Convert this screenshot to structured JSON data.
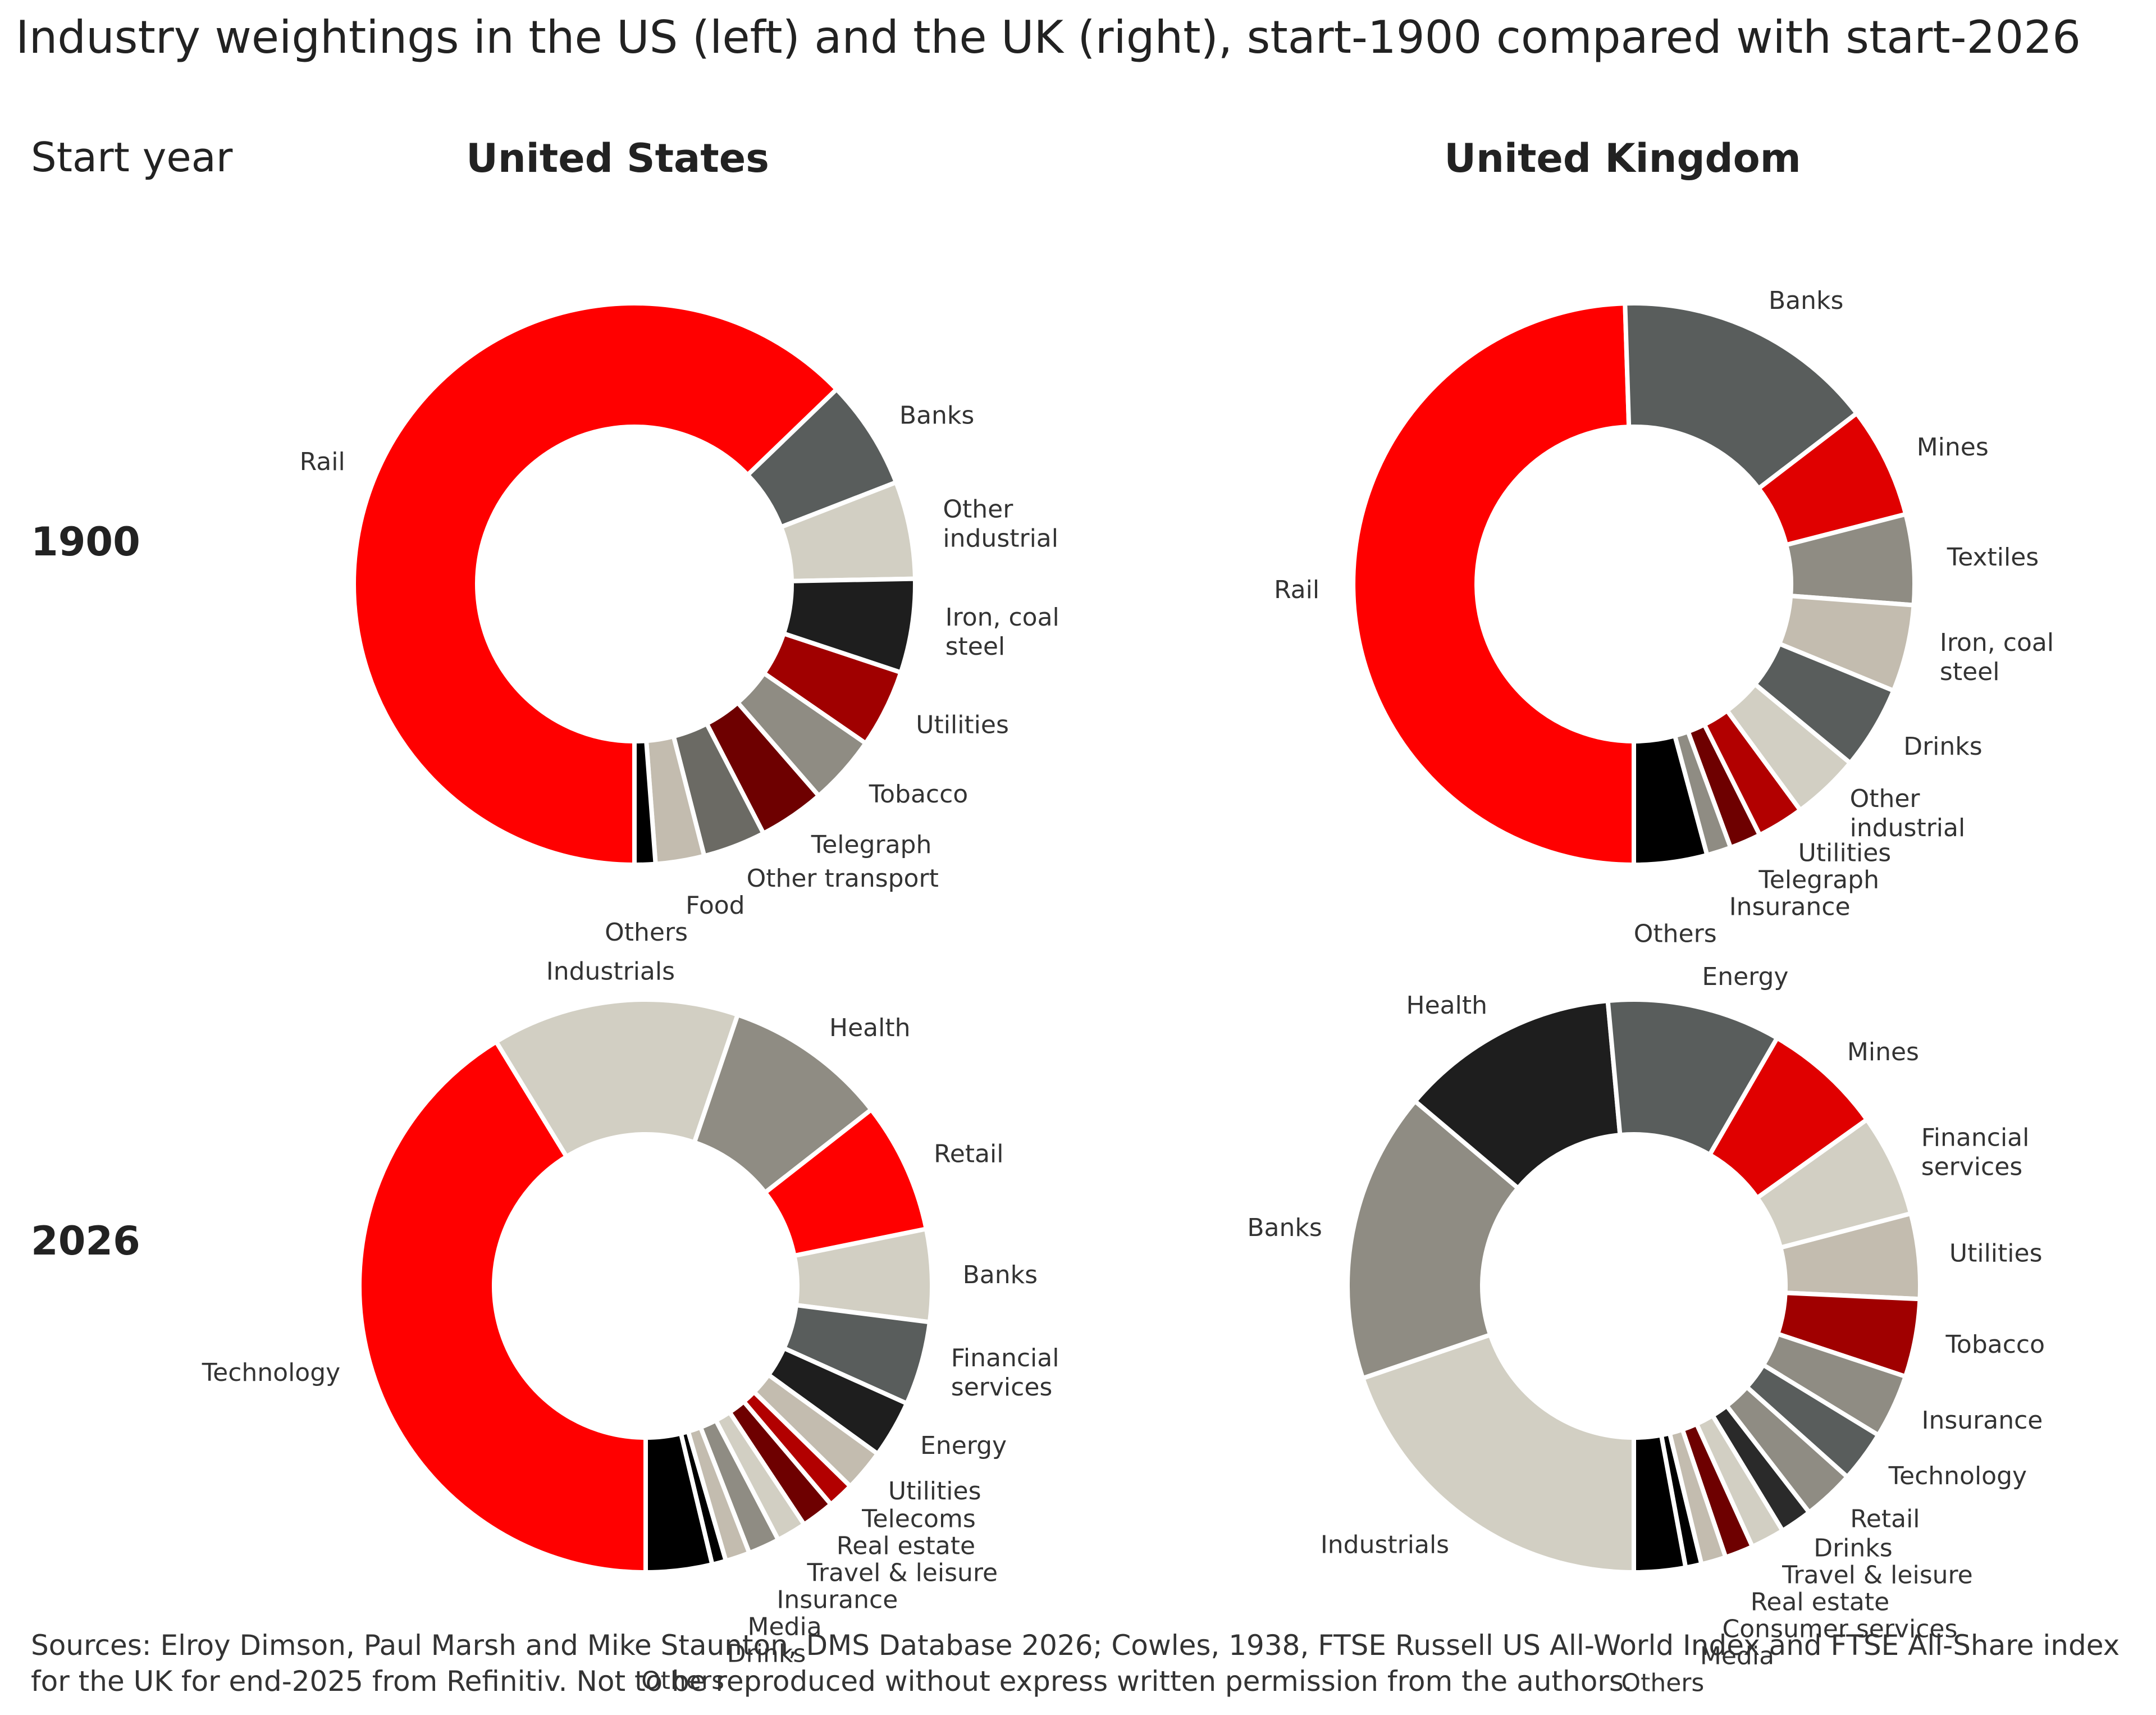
{
  "title": "Industry weightings in the US (left) and the UK (right), start-1900 compared with start-2026",
  "row_header": "Start year",
  "columns": [
    "United States",
    "United Kingdom"
  ],
  "rows": [
    "1900",
    "2026"
  ],
  "sources": "Sources: Elroy Dimson, Paul Marsh and Mike Staunton, DMS Database 2026; Cowles, 1938, FTSE Russell US All-World Index and FTSE All-Share index for the UK for end-2025 from Refinitiv. Not to be reproduced without express written permission from the authors.",
  "colors": {
    "red": "#ff0000",
    "darkgrey": "#595d5c",
    "lightbeige": "#d2cfc3",
    "black": "#1e1e1e",
    "darkred": "#b20000",
    "midgrey": "#8f8c83",
    "maroon": "#6e0000",
    "greybrown": "#6b6a64",
    "beige": "#c3bcaf",
    "pureblack": "#000000",
    "brightred": "#e00000",
    "tan": "#bdb6a6"
  },
  "chart_data": [
    {
      "type": "pie",
      "subtype": "donut",
      "country": "United States",
      "year": "1900",
      "unit": "%",
      "start": "bottom",
      "direction": "clockwise",
      "slices": [
        {
          "label": "Rail",
          "value": 62.8,
          "color": "#ff0000"
        },
        {
          "label": "Banks",
          "value": 6.3,
          "color": "#595d5c"
        },
        {
          "label": "Other industrial",
          "value": 5.6,
          "color": "#d2cfc3"
        },
        {
          "label": "Iron, coal steel",
          "value": 5.4,
          "color": "#1e1e1e"
        },
        {
          "label": "Utilities",
          "value": 4.5,
          "color": "#a00000"
        },
        {
          "label": "Tobacco",
          "value": 4.0,
          "color": "#8f8c83"
        },
        {
          "label": "Telegraph",
          "value": 3.8,
          "color": "#6e0000"
        },
        {
          "label": "Other transport",
          "value": 3.6,
          "color": "#6b6a64"
        },
        {
          "label": "Food",
          "value": 2.8,
          "color": "#c3bcaf"
        },
        {
          "label": "Others",
          "value": 1.2,
          "color": "#000000"
        }
      ]
    },
    {
      "type": "pie",
      "subtype": "donut",
      "country": "United Kingdom",
      "year": "1900",
      "unit": "%",
      "start": "bottom",
      "direction": "clockwise",
      "slices": [
        {
          "label": "Rail",
          "value": 49.5,
          "color": "#ff0000"
        },
        {
          "label": "Banks",
          "value": 15.1,
          "color": "#595d5c"
        },
        {
          "label": "Mines",
          "value": 6.4,
          "color": "#e00000"
        },
        {
          "label": "Textiles",
          "value": 5.2,
          "color": "#8f8c83"
        },
        {
          "label": "Iron, coal steel",
          "value": 5.0,
          "color": "#c3bcaf"
        },
        {
          "label": "Drinks",
          "value": 4.8,
          "color": "#595d5c"
        },
        {
          "label": "Other industrial",
          "value": 3.9,
          "color": "#d2cfc3"
        },
        {
          "label": "Utilities",
          "value": 2.7,
          "color": "#b20000"
        },
        {
          "label": "Telegraph",
          "value": 1.8,
          "color": "#6e0000"
        },
        {
          "label": "Insurance",
          "value": 1.4,
          "color": "#8f8c83"
        },
        {
          "label": "Others",
          "value": 4.2,
          "color": "#000000"
        }
      ]
    },
    {
      "type": "pie",
      "subtype": "donut",
      "country": "United States",
      "year": "2026",
      "unit": "%",
      "start": "bottom",
      "direction": "clockwise",
      "slices": [
        {
          "label": "Technology",
          "value": 42.0,
          "color": "#ff0000"
        },
        {
          "label": "Industrials",
          "value": 14.2,
          "color": "#d2cfc3"
        },
        {
          "label": "Health",
          "value": 9.4,
          "color": "#8f8c83"
        },
        {
          "label": "Retail",
          "value": 7.5,
          "color": "#ff0000"
        },
        {
          "label": "Banks",
          "value": 5.3,
          "color": "#d2cfc3"
        },
        {
          "label": "Financial services",
          "value": 4.8,
          "color": "#595d5c"
        },
        {
          "label": "Energy",
          "value": 3.3,
          "color": "#1e1e1e"
        },
        {
          "label": "Utilities",
          "value": 2.4,
          "color": "#c3bcaf"
        },
        {
          "label": "Telecoms",
          "value": 1.5,
          "color": "#b20000"
        },
        {
          "label": "Real estate",
          "value": 1.9,
          "color": "#6e0000"
        },
        {
          "label": "Travel & leisure",
          "value": 1.7,
          "color": "#d2cfc3"
        },
        {
          "label": "Insurance",
          "value": 1.8,
          "color": "#8f8c83"
        },
        {
          "label": "Media",
          "value": 1.4,
          "color": "#c3bcaf"
        },
        {
          "label": "Drinks",
          "value": 0.8,
          "color": "#000000"
        },
        {
          "label": "Others",
          "value": 3.8,
          "color": "#000000"
        }
      ]
    },
    {
      "type": "pie",
      "subtype": "donut",
      "country": "United Kingdom",
      "year": "2026",
      "unit": "%",
      "start": "bottom",
      "direction": "clockwise",
      "slices": [
        {
          "label": "Industrials",
          "value": 19.8,
          "color": "#d2cfc3"
        },
        {
          "label": "Banks",
          "value": 16.4,
          "color": "#8f8c83"
        },
        {
          "label": "Health",
          "value": 12.4,
          "color": "#1e1e1e"
        },
        {
          "label": "Energy",
          "value": 9.8,
          "color": "#595d5c"
        },
        {
          "label": "Mines",
          "value": 6.8,
          "color": "#e00000"
        },
        {
          "label": "Financial services",
          "value": 5.8,
          "color": "#d2cfc3"
        },
        {
          "label": "Utilities",
          "value": 4.8,
          "color": "#c3bcaf"
        },
        {
          "label": "Tobacco",
          "value": 4.4,
          "color": "#a00000"
        },
        {
          "label": "Insurance",
          "value": 3.6,
          "color": "#8f8c83"
        },
        {
          "label": "Technology",
          "value": 2.9,
          "color": "#595d5c"
        },
        {
          "label": "Retail",
          "value": 2.9,
          "color": "#8f8c83"
        },
        {
          "label": "Drinks",
          "value": 1.8,
          "color": "#2a2a2a"
        },
        {
          "label": "Travel & leisure",
          "value": 1.9,
          "color": "#d2cfc3"
        },
        {
          "label": "Real estate",
          "value": 1.6,
          "color": "#6e0000"
        },
        {
          "label": "Consumer services",
          "value": 1.4,
          "color": "#c3bcaf"
        },
        {
          "label": "Media",
          "value": 0.9,
          "color": "#000000"
        },
        {
          "label": "Others",
          "value": 2.9,
          "color": "#000000"
        }
      ]
    }
  ]
}
